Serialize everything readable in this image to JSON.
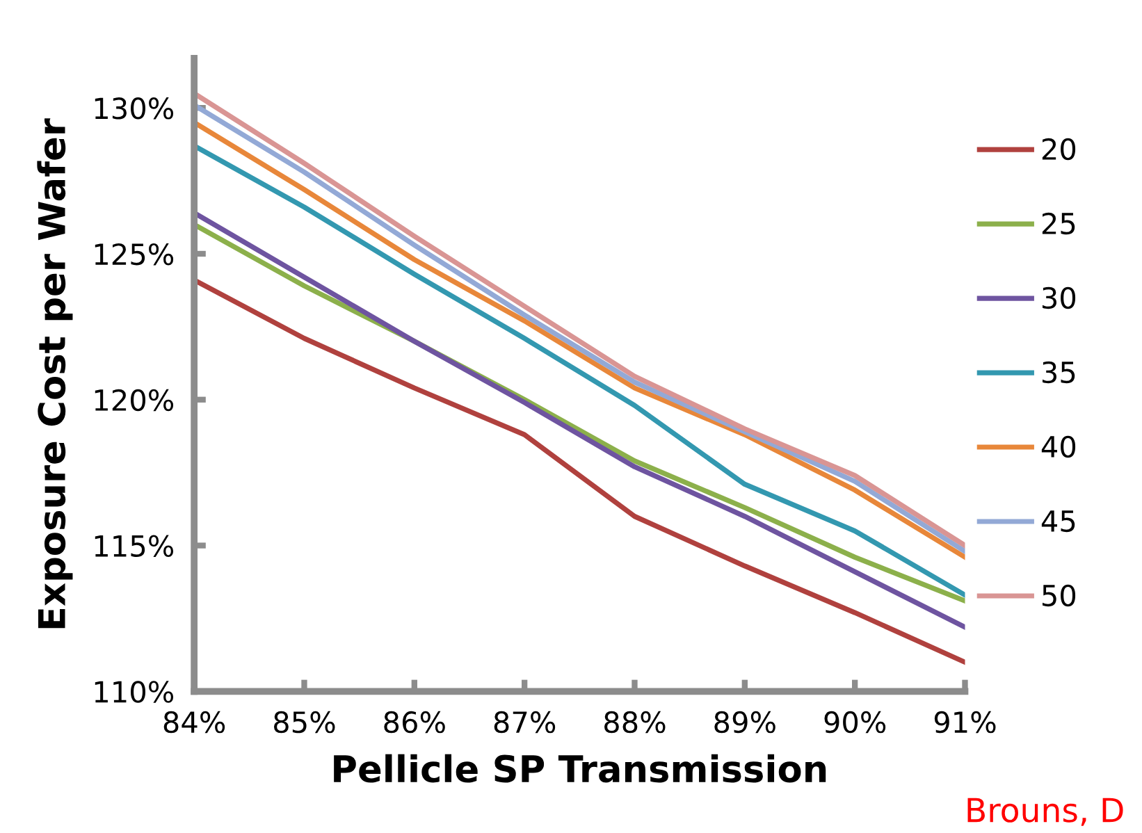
{
  "chart_data": {
    "type": "line",
    "xlabel": "Pellicle SP Transmission",
    "ylabel": "Exposure Cost per Wafer",
    "x": [
      84,
      85,
      86,
      87,
      88,
      89,
      90,
      91
    ],
    "series": [
      {
        "name": "20",
        "color": "#b0413e",
        "values": [
          124.1,
          122.1,
          120.4,
          118.8,
          116.0,
          114.3,
          112.7,
          111.0
        ]
      },
      {
        "name": "25",
        "color": "#8cb04b",
        "values": [
          126.0,
          123.9,
          122.0,
          120.0,
          117.9,
          116.3,
          114.6,
          113.1
        ]
      },
      {
        "name": "30",
        "color": "#6e54a0",
        "values": [
          126.4,
          124.2,
          122.0,
          119.9,
          117.7,
          116.0,
          114.1,
          112.2
        ]
      },
      {
        "name": "35",
        "color": "#3398b0",
        "values": [
          128.7,
          126.6,
          124.3,
          122.1,
          119.8,
          117.1,
          115.5,
          113.3
        ]
      },
      {
        "name": "40",
        "color": "#e8873a",
        "values": [
          129.5,
          127.2,
          124.8,
          122.7,
          120.4,
          118.8,
          116.9,
          114.6
        ]
      },
      {
        "name": "45",
        "color": "#93a9d6",
        "values": [
          130.1,
          127.8,
          125.3,
          122.9,
          120.6,
          118.9,
          117.2,
          114.8
        ]
      },
      {
        "name": "50",
        "color": "#d99594",
        "values": [
          130.5,
          128.1,
          125.6,
          123.2,
          120.8,
          119.0,
          117.4,
          115.0
        ]
      }
    ],
    "xlim": [
      84,
      91
    ],
    "ylim": [
      110,
      131.7
    ],
    "xticks": [
      {
        "value": 84,
        "label": "84%"
      },
      {
        "value": 85,
        "label": "85%"
      },
      {
        "value": 86,
        "label": "86%"
      },
      {
        "value": 87,
        "label": "87%"
      },
      {
        "value": 88,
        "label": "88%"
      },
      {
        "value": 89,
        "label": "89%"
      },
      {
        "value": 90,
        "label": "90%"
      },
      {
        "value": 91,
        "label": "91%"
      }
    ],
    "yticks": [
      {
        "value": 110,
        "label": "110%"
      },
      {
        "value": 115,
        "label": "115%"
      },
      {
        "value": 120,
        "label": "120%"
      },
      {
        "value": 125,
        "label": "125%"
      },
      {
        "value": 130,
        "label": "130%"
      }
    ],
    "legend": "right",
    "grid": false,
    "marker": "none",
    "line_style": "solid",
    "annotations": [
      "Brouns, D"
    ]
  }
}
